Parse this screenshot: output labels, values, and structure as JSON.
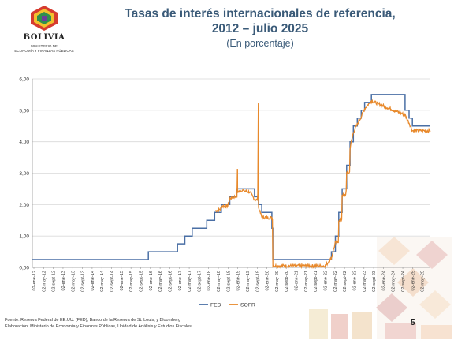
{
  "logo": {
    "name": "BOLIVIA",
    "sub_line1": "MINISTERIO DE",
    "sub_line2": "ECONOMÍA Y FINANZAS PÚBLICAS"
  },
  "header": {
    "title_line1": "Tasas de interés internacionales de referencia,",
    "title_line2": "2012 – julio 2025",
    "subtitle": "(En porcentaje)"
  },
  "footer": {
    "source": "Fuente: Reserva Federal de EE.UU. (FED), Banco de la Reserva de St. Louis, y Bloomberg",
    "elaboration": "Elaboración: Ministerio de Economía y Finanzas Públicas, Unidad de Análisis y Estudios Fiscales"
  },
  "page_number": "5",
  "colors": {
    "fed": "#4a6fa5",
    "sofr": "#e8892b",
    "title": "#3a5a78",
    "grid": "#d9d9d9"
  },
  "chart_data": {
    "type": "line",
    "title": "",
    "xlabel": "",
    "ylabel": "",
    "ylim": [
      0,
      6
    ],
    "yticks": [
      "0,00",
      "1,00",
      "2,00",
      "3,00",
      "4,00",
      "5,00",
      "6,00"
    ],
    "grid": "horizontal",
    "legend_position": "bottom",
    "x_tick_labels": [
      "02-ene-12",
      "02-may-12",
      "02-sept-12",
      "02-ene-13",
      "02-may-13",
      "02-sept-13",
      "02-ene-14",
      "02-may-14",
      "02-sept-14",
      "02-ene-15",
      "02-may-15",
      "02-sept-15",
      "02-ene-16",
      "02-may-16",
      "02-sept-16",
      "02-ene-17",
      "02-may-17",
      "02-sept-17",
      "02-ene-18",
      "02-may-18",
      "02-sept-18",
      "02-ene-19",
      "02-may-19",
      "02-sept-19",
      "02-ene-20",
      "02-may-20",
      "02-sept-20",
      "02-ene-21",
      "02-may-21",
      "02-sept-21",
      "02-ene-22",
      "02-may-22",
      "02-sept-22",
      "02-ene-23",
      "02-may-23",
      "02-sept-23",
      "02-ene-24",
      "02-may-24",
      "02-sept-24",
      "02-ene-25",
      "02-may-25"
    ],
    "x_range": [
      "2012-01-02",
      "2025-07-31"
    ],
    "series": [
      {
        "name": "FED",
        "style": "step",
        "points": [
          [
            "2012-01-02",
            0.25
          ],
          [
            "2015-12-17",
            0.5
          ],
          [
            "2016-12-15",
            0.75
          ],
          [
            "2017-03-16",
            1.0
          ],
          [
            "2017-06-15",
            1.25
          ],
          [
            "2017-12-14",
            1.5
          ],
          [
            "2018-03-22",
            1.75
          ],
          [
            "2018-06-14",
            2.0
          ],
          [
            "2018-09-27",
            2.25
          ],
          [
            "2018-12-20",
            2.5
          ],
          [
            "2019-08-01",
            2.25
          ],
          [
            "2019-09-19",
            2.0
          ],
          [
            "2019-10-31",
            1.75
          ],
          [
            "2020-03-04",
            1.25
          ],
          [
            "2020-03-16",
            0.25
          ],
          [
            "2022-03-17",
            0.5
          ],
          [
            "2022-05-05",
            1.0
          ],
          [
            "2022-06-16",
            1.75
          ],
          [
            "2022-07-28",
            2.5
          ],
          [
            "2022-09-22",
            3.25
          ],
          [
            "2022-11-03",
            4.0
          ],
          [
            "2022-12-15",
            4.5
          ],
          [
            "2023-02-02",
            4.75
          ],
          [
            "2023-03-23",
            5.0
          ],
          [
            "2023-05-04",
            5.25
          ],
          [
            "2023-07-27",
            5.5
          ],
          [
            "2024-09-19",
            5.0
          ],
          [
            "2024-11-08",
            4.75
          ],
          [
            "2024-12-19",
            4.5
          ],
          [
            "2025-07-31",
            4.5
          ]
        ]
      },
      {
        "name": "SOFR",
        "style": "noisy",
        "points": [
          [
            "2018-04-02",
            1.8
          ],
          [
            "2018-06-01",
            1.85
          ],
          [
            "2018-06-20",
            1.95
          ],
          [
            "2018-09-01",
            1.95
          ],
          [
            "2018-10-01",
            2.2
          ],
          [
            "2018-12-01",
            2.25
          ],
          [
            "2018-12-31",
            3.1
          ],
          [
            "2019-01-02",
            2.4
          ],
          [
            "2019-03-01",
            2.45
          ],
          [
            "2019-06-01",
            2.4
          ],
          [
            "2019-08-05",
            2.15
          ],
          [
            "2019-09-17",
            5.25
          ],
          [
            "2019-09-20",
            1.9
          ],
          [
            "2019-11-01",
            1.6
          ],
          [
            "2020-02-28",
            1.58
          ],
          [
            "2020-03-17",
            0.05
          ],
          [
            "2021-06-17",
            0.05
          ],
          [
            "2021-12-31",
            0.05
          ],
          [
            "2022-03-17",
            0.3
          ],
          [
            "2022-05-05",
            0.8
          ],
          [
            "2022-06-16",
            1.5
          ],
          [
            "2022-07-28",
            2.3
          ],
          [
            "2022-09-22",
            3.0
          ],
          [
            "2022-11-03",
            3.8
          ],
          [
            "2022-12-15",
            4.3
          ],
          [
            "2023-02-02",
            4.55
          ],
          [
            "2023-03-23",
            4.8
          ],
          [
            "2023-05-04",
            5.05
          ],
          [
            "2023-07-27",
            5.3
          ],
          [
            "2024-09-19",
            4.85
          ],
          [
            "2024-11-08",
            4.6
          ],
          [
            "2024-12-19",
            4.35
          ],
          [
            "2025-07-31",
            4.35
          ]
        ]
      }
    ]
  }
}
